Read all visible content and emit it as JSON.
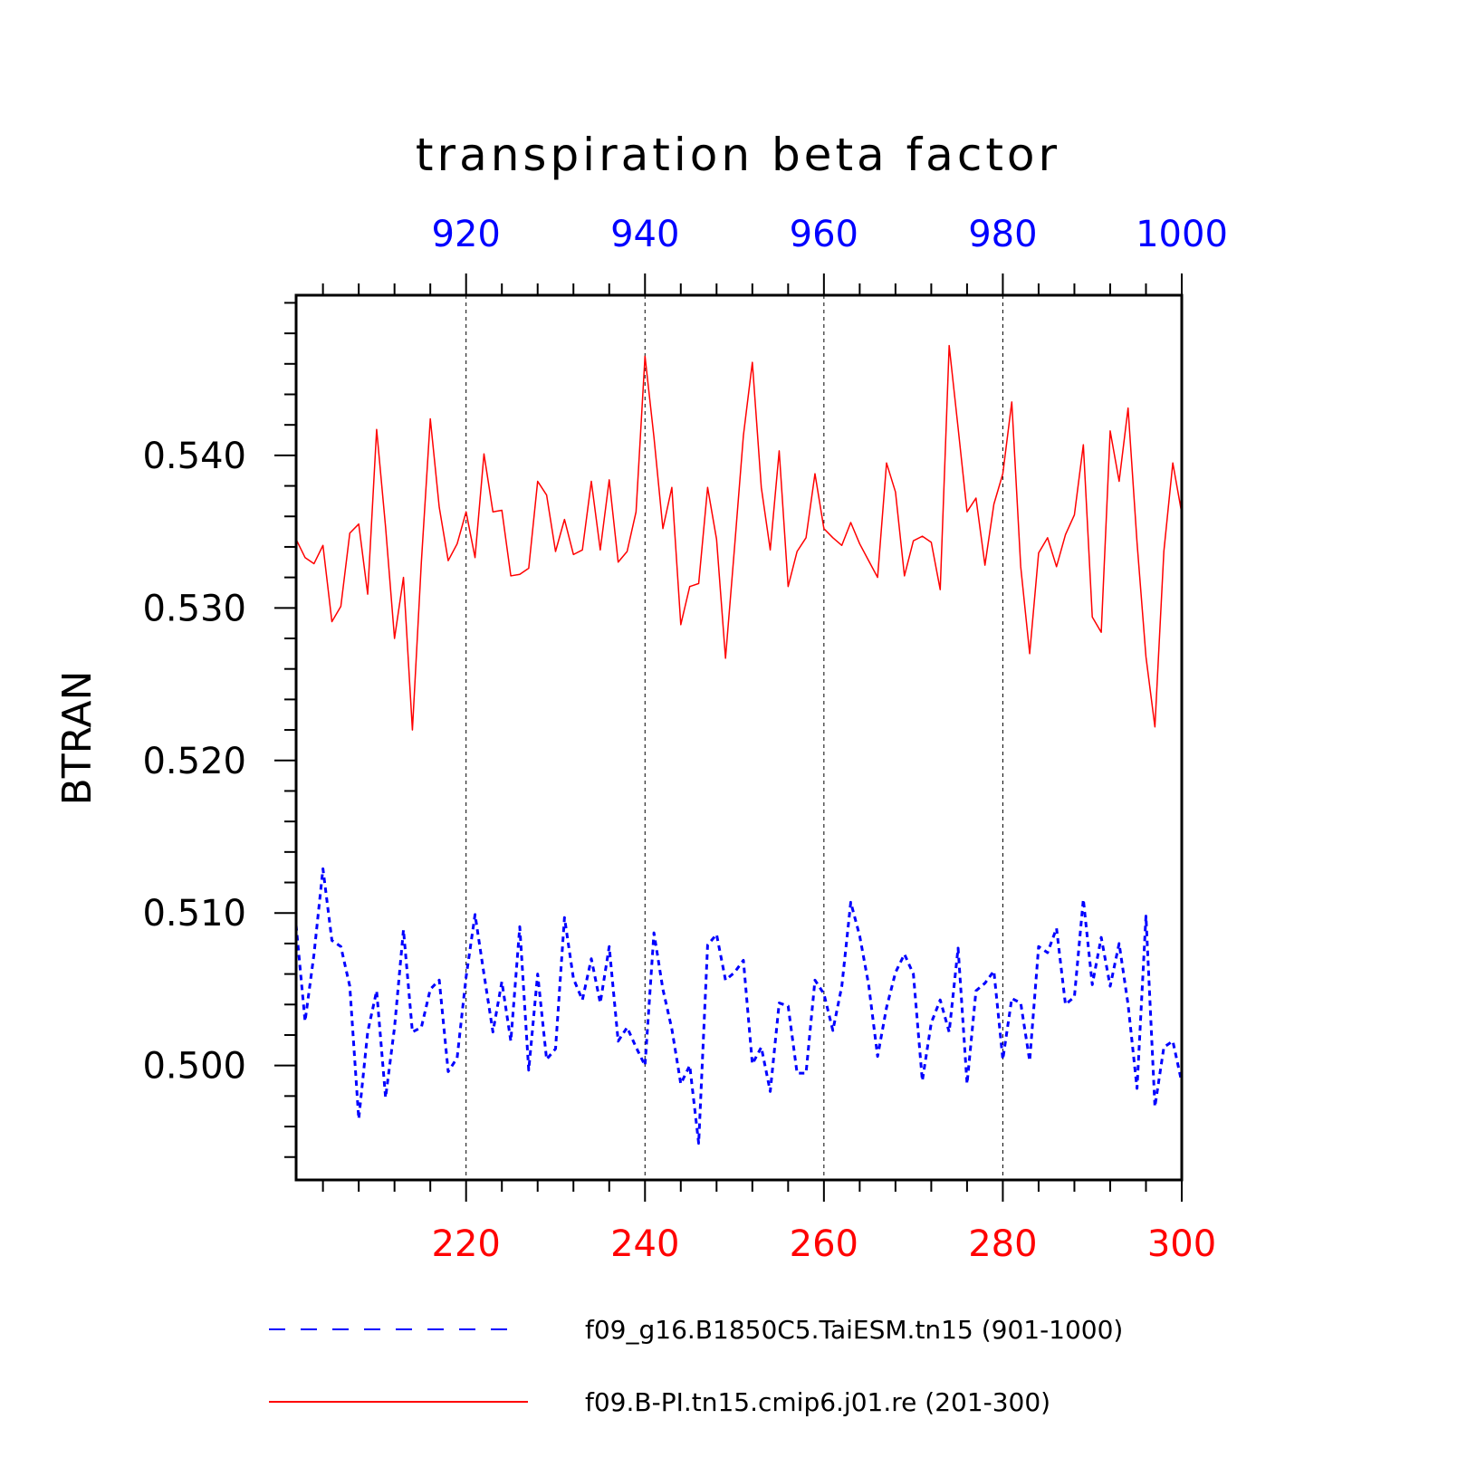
{
  "chart_data": {
    "type": "line",
    "title": "transpiration beta factor",
    "ylabel": "BTRAN",
    "ylim": [
      0.4925,
      0.5505
    ],
    "yticks": [
      "0.500",
      "0.510",
      "0.520",
      "0.530",
      "0.540"
    ],
    "y_tick_values": [
      0.5,
      0.51,
      0.52,
      0.53,
      0.54
    ],
    "x_bottom": {
      "range": [
        201,
        300
      ],
      "ticks": [
        "220",
        "240",
        "260",
        "280",
        "300"
      ],
      "tick_values": [
        220,
        240,
        260,
        280,
        300
      ],
      "color": "#ff0000"
    },
    "x_top": {
      "range": [
        901,
        1000
      ],
      "ticks": [
        "920",
        "940",
        "960",
        "980",
        "1000"
      ],
      "tick_values": [
        920,
        940,
        960,
        980,
        1000
      ],
      "color": "#0000ff"
    },
    "grid": "vertical dashed at major x ticks",
    "legend_position": "bottom",
    "series": [
      {
        "name": "f09_g16.B1850C5.TaiESM.tn15 (901-1000)",
        "axis": "top",
        "color": "#0000ff",
        "style": "dashed",
        "x": [
          901,
          902,
          903,
          904,
          905,
          906,
          907,
          908,
          909,
          910,
          911,
          912,
          913,
          914,
          915,
          916,
          917,
          918,
          919,
          920,
          921,
          922,
          923,
          924,
          925,
          926,
          927,
          928,
          929,
          930,
          931,
          932,
          933,
          934,
          935,
          936,
          937,
          938,
          939,
          940,
          941,
          942,
          943,
          944,
          945,
          946,
          947,
          948,
          949,
          950,
          951,
          952,
          953,
          954,
          955,
          956,
          957,
          958,
          959,
          960,
          961,
          962,
          963,
          964,
          965,
          966,
          967,
          968,
          969,
          970,
          971,
          972,
          973,
          974,
          975,
          976,
          977,
          978,
          979,
          980,
          981,
          982,
          983,
          984,
          985,
          986,
          987,
          988,
          989,
          990,
          991,
          992,
          993,
          994,
          995,
          996,
          997,
          998,
          999,
          1000
        ],
        "values": [
          0.5092,
          0.5029,
          0.5073,
          0.5129,
          0.5082,
          0.5078,
          0.5052,
          0.4965,
          0.5022,
          0.5049,
          0.4979,
          0.5025,
          0.5089,
          0.5022,
          0.5025,
          0.505,
          0.5056,
          0.4996,
          0.5005,
          0.5058,
          0.5099,
          0.506,
          0.5022,
          0.5055,
          0.5016,
          0.5091,
          0.4997,
          0.506,
          0.5004,
          0.5011,
          0.5097,
          0.5057,
          0.5043,
          0.507,
          0.5041,
          0.5078,
          0.5016,
          0.5025,
          0.5012,
          0.5,
          0.5087,
          0.505,
          0.5024,
          0.4988,
          0.5,
          0.4949,
          0.5079,
          0.5086,
          0.5056,
          0.5061,
          0.5069,
          0.5001,
          0.5012,
          0.4983,
          0.5041,
          0.5039,
          0.4995,
          0.4995,
          0.5056,
          0.5047,
          0.5023,
          0.5052,
          0.5107,
          0.5085,
          0.5053,
          0.5006,
          0.5038,
          0.5061,
          0.5073,
          0.506,
          0.499,
          0.5028,
          0.5043,
          0.5022,
          0.5077,
          0.4988,
          0.5049,
          0.5054,
          0.5062,
          0.5004,
          0.5044,
          0.5041,
          0.5003,
          0.5078,
          0.5074,
          0.509,
          0.504,
          0.5045,
          0.5109,
          0.5053,
          0.5084,
          0.5052,
          0.508,
          0.504,
          0.4985,
          0.5098,
          0.4973,
          0.5012,
          0.5016,
          0.4989
        ]
      },
      {
        "name": "f09.B-PI.tn15.cmip6.j01.re (201-300)",
        "axis": "bottom",
        "color": "#ff0000",
        "style": "solid",
        "x": [
          201,
          202,
          203,
          204,
          205,
          206,
          207,
          208,
          209,
          210,
          211,
          212,
          213,
          214,
          215,
          216,
          217,
          218,
          219,
          220,
          221,
          222,
          223,
          224,
          225,
          226,
          227,
          228,
          229,
          230,
          231,
          232,
          233,
          234,
          235,
          236,
          237,
          238,
          239,
          240,
          241,
          242,
          243,
          244,
          245,
          246,
          247,
          248,
          249,
          250,
          251,
          252,
          253,
          254,
          255,
          256,
          257,
          258,
          259,
          260,
          261,
          262,
          263,
          264,
          265,
          266,
          267,
          268,
          269,
          270,
          271,
          272,
          273,
          274,
          275,
          276,
          277,
          278,
          279,
          280,
          281,
          282,
          283,
          284,
          285,
          286,
          287,
          288,
          289,
          290,
          291,
          292,
          293,
          294,
          295,
          296,
          297,
          298,
          299,
          300
        ],
        "values": [
          0.5345,
          0.5333,
          0.5329,
          0.5341,
          0.5291,
          0.5301,
          0.5349,
          0.5355,
          0.5309,
          0.5417,
          0.5353,
          0.528,
          0.532,
          0.522,
          0.533,
          0.5424,
          0.5366,
          0.5331,
          0.5342,
          0.5363,
          0.5333,
          0.5401,
          0.5363,
          0.5364,
          0.5321,
          0.5322,
          0.5326,
          0.5383,
          0.5374,
          0.5337,
          0.5358,
          0.5335,
          0.5338,
          0.5383,
          0.5338,
          0.5384,
          0.533,
          0.5337,
          0.5363,
          0.5465,
          0.5412,
          0.5352,
          0.5379,
          0.5289,
          0.5314,
          0.5316,
          0.5379,
          0.5345,
          0.5267,
          0.5339,
          0.5413,
          0.5461,
          0.5379,
          0.5338,
          0.5403,
          0.5314,
          0.5337,
          0.5346,
          0.5388,
          0.5352,
          0.5346,
          0.5341,
          0.5356,
          0.5342,
          0.5331,
          0.532,
          0.5395,
          0.5376,
          0.5321,
          0.5344,
          0.5347,
          0.5343,
          0.5312,
          0.5472,
          0.5418,
          0.5363,
          0.5372,
          0.5328,
          0.5368,
          0.5388,
          0.5435,
          0.5327,
          0.527,
          0.5336,
          0.5346,
          0.5327,
          0.5348,
          0.5361,
          0.5407,
          0.5294,
          0.5284,
          0.5416,
          0.5383,
          0.5431,
          0.5343,
          0.5268,
          0.5222,
          0.5337,
          0.5395,
          0.5362
        ]
      }
    ]
  }
}
